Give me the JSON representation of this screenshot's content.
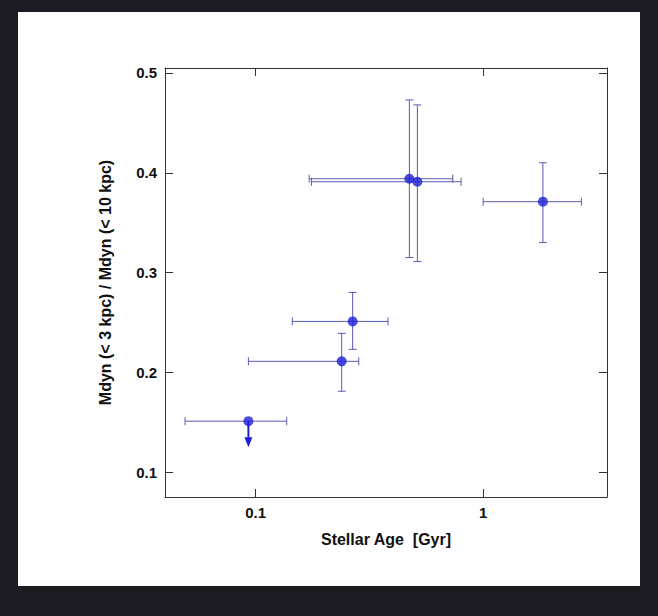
{
  "chart_data": {
    "type": "scatter",
    "x_label": "Stellar Age  [Gyr]",
    "y_label": "Mdyn (< 3 kpc) / Mdyn (< 10 kpc)",
    "x": [
      0.093,
      0.239,
      0.267,
      0.474,
      0.514,
      1.83
    ],
    "values": [
      0.151,
      0.211,
      0.251,
      0.394,
      0.391,
      0.371
    ],
    "xerr": [
      [
        0.049,
        0.137
      ],
      [
        0.093,
        0.284
      ],
      [
        0.145,
        0.382
      ],
      [
        0.172,
        0.735
      ],
      [
        0.176,
        0.8
      ],
      [
        1.0,
        2.7
      ]
    ],
    "yerr": [
      null,
      [
        0.181,
        0.239
      ],
      [
        0.223,
        0.28
      ],
      [
        0.315,
        0.473
      ],
      [
        0.311,
        0.468
      ],
      [
        0.33,
        0.41
      ]
    ],
    "upper_limit": [
      true,
      false,
      false,
      false,
      false,
      false
    ],
    "color": "#1f1fd6",
    "marker": "circle",
    "log": "x",
    "xlim": [
      0.04,
      3.5
    ],
    "xticks": [
      0.1,
      1
    ],
    "ylim": [
      0.075,
      0.505
    ],
    "yticks": [
      0.1,
      0.2,
      0.3,
      0.4,
      0.5
    ],
    "grid": false
  }
}
